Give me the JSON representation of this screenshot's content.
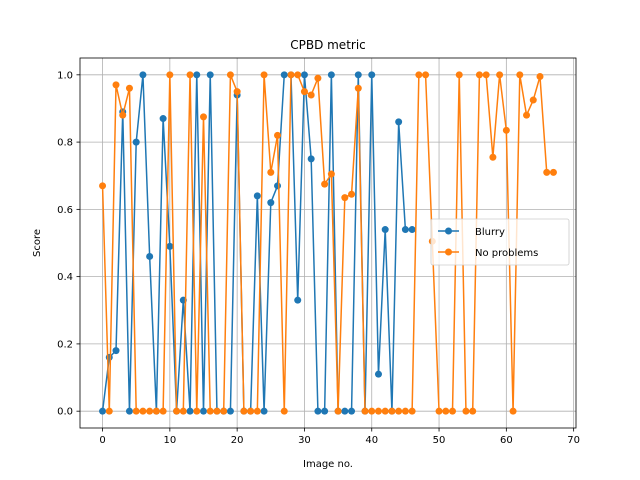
{
  "chart_data": {
    "type": "line",
    "title": "CPBD metric",
    "xlabel": "Image no.",
    "ylabel": "Score",
    "xlim": [
      -3.35,
      70.35
    ],
    "ylim": [
      -0.05,
      1.05
    ],
    "xticks": [
      0,
      10,
      20,
      30,
      40,
      50,
      60,
      70
    ],
    "yticks": [
      0.0,
      0.2,
      0.4,
      0.6,
      0.8,
      1.0
    ],
    "xtick_labels": [
      "0",
      "10",
      "20",
      "30",
      "40",
      "50",
      "60",
      "70"
    ],
    "ytick_labels": [
      "0.0",
      "0.2",
      "0.4",
      "0.6",
      "0.8",
      "1.0"
    ],
    "grid": true,
    "legend_position": "center-right",
    "series": [
      {
        "name": "Blurry",
        "color": "#1f77b4",
        "x": [
          0,
          1,
          2,
          3,
          4,
          5,
          6,
          7,
          8,
          9,
          10,
          11,
          12,
          13,
          14,
          15,
          16,
          17,
          18,
          19,
          20,
          21,
          22,
          23,
          24,
          25,
          26,
          27,
          28,
          29,
          30,
          31,
          32,
          33,
          34,
          35,
          36,
          37,
          38,
          39,
          40,
          41,
          42,
          43,
          44,
          45,
          46
        ],
        "y": [
          0,
          0.16,
          0.18,
          0.89,
          0,
          0.8,
          1,
          0.46,
          0,
          0.87,
          0.49,
          0,
          0.33,
          0,
          1,
          0,
          1,
          0,
          0,
          0,
          0.94,
          0,
          0,
          0.64,
          0,
          0.62,
          0.67,
          1,
          1,
          0.33,
          1,
          0.75,
          0,
          0,
          1,
          0,
          0,
          0,
          1,
          0,
          1,
          0.11,
          0.54,
          0,
          0.86,
          0.54,
          0.54
        ]
      },
      {
        "name": "No problems",
        "color": "#ff7f0e",
        "x": [
          0,
          1,
          2,
          3,
          4,
          5,
          6,
          7,
          8,
          9,
          10,
          11,
          12,
          13,
          14,
          15,
          16,
          17,
          18,
          19,
          20,
          21,
          22,
          23,
          24,
          25,
          26,
          27,
          28,
          29,
          30,
          31,
          32,
          33,
          34,
          35,
          36,
          37,
          38,
          39,
          40,
          41,
          42,
          43,
          44,
          45,
          46,
          47,
          48,
          49,
          50,
          51,
          52,
          53,
          54,
          55,
          56,
          57,
          58,
          59,
          60,
          61,
          62,
          63,
          64,
          65,
          66,
          67
        ],
        "y": [
          0.67,
          0,
          0.97,
          0.88,
          0.96,
          0,
          0,
          0,
          0,
          0,
          1,
          0,
          0,
          1,
          0,
          0.875,
          0,
          0,
          0,
          1,
          0.95,
          0,
          0,
          0,
          1,
          0.71,
          0.82,
          0,
          1,
          1,
          0.95,
          0.94,
          0.99,
          0.675,
          0.705,
          0,
          0.635,
          0.645,
          0.96,
          0,
          0,
          0,
          0,
          0,
          0,
          0,
          0,
          1,
          1,
          0.505,
          0,
          0,
          0,
          1,
          0,
          0,
          1,
          1,
          0.755,
          1,
          0.835,
          0,
          1,
          0.88,
          0.925,
          0.995,
          0.71,
          0.71
        ]
      }
    ]
  }
}
